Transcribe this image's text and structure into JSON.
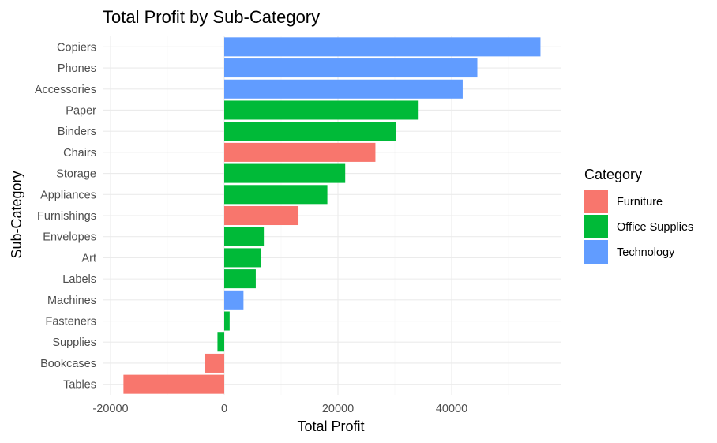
{
  "chart_data": {
    "type": "bar",
    "orientation": "horizontal",
    "title": "Total Profit by Sub-Category",
    "xlabel": "Total Profit",
    "ylabel": "Sub-Category",
    "xlim": [
      -20000,
      59000
    ],
    "xticks": [
      -20000,
      0,
      20000,
      40000
    ],
    "xtick_labels": [
      "-20000",
      "0",
      "20000",
      "40000"
    ],
    "grid": true,
    "legend": {
      "title": "Category",
      "placement": "right",
      "entries": [
        {
          "name": "Furniture",
          "color": "#F8766D"
        },
        {
          "name": "Office Supplies",
          "color": "#00BA38"
        },
        {
          "name": "Technology",
          "color": "#619CFF"
        }
      ]
    },
    "categories": [
      "Copiers",
      "Phones",
      "Accessories",
      "Paper",
      "Binders",
      "Chairs",
      "Storage",
      "Appliances",
      "Furnishings",
      "Envelopes",
      "Art",
      "Labels",
      "Machines",
      "Fasteners",
      "Supplies",
      "Bookcases",
      "Tables"
    ],
    "values": [
      55618,
      44516,
      41937,
      34054,
      30222,
      26590,
      21279,
      18138,
      13059,
      6964,
      6528,
      5546,
      3385,
      950,
      -1189,
      -3473,
      -17725
    ],
    "groups": [
      "Technology",
      "Technology",
      "Technology",
      "Office Supplies",
      "Office Supplies",
      "Furniture",
      "Office Supplies",
      "Office Supplies",
      "Furniture",
      "Office Supplies",
      "Office Supplies",
      "Office Supplies",
      "Technology",
      "Office Supplies",
      "Office Supplies",
      "Furniture",
      "Furniture"
    ]
  }
}
